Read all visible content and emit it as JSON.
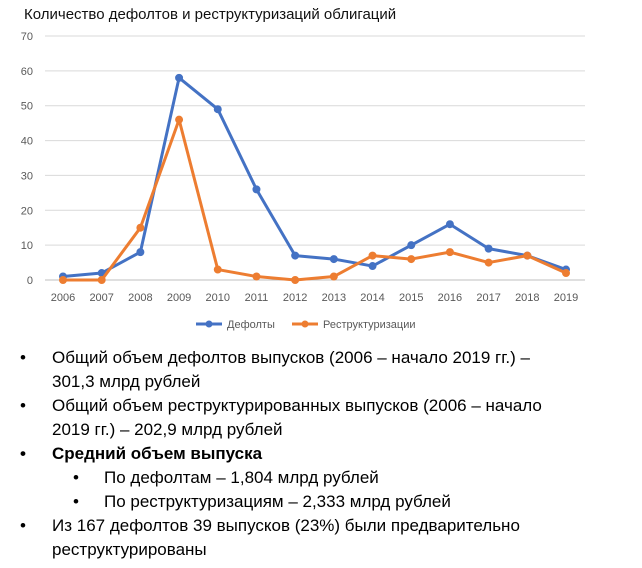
{
  "chart_data": {
    "type": "line",
    "title": "Количество дефолтов и реструктуризаций облигаций",
    "xlabel": "",
    "ylabel": "",
    "categories": [
      "2006",
      "2007",
      "2008",
      "2009",
      "2010",
      "2011",
      "2012",
      "2013",
      "2014",
      "2015",
      "2016",
      "2017",
      "2018",
      "2019"
    ],
    "ylim": [
      0,
      70
    ],
    "yticks": [
      "0",
      "10",
      "20",
      "30",
      "40",
      "50",
      "60",
      "70"
    ],
    "grid": true,
    "legend_position": "bottom",
    "series": [
      {
        "name": "Дефолты",
        "color": "#4472C4",
        "values": [
          1,
          2,
          8,
          58,
          49,
          26,
          7,
          6,
          4,
          10,
          16,
          9,
          7,
          3
        ]
      },
      {
        "name": "Реструктуризации",
        "color": "#ED7D31",
        "values": [
          0,
          0,
          15,
          46,
          3,
          1,
          0,
          1,
          7,
          6,
          8,
          5,
          7,
          2
        ]
      }
    ]
  },
  "bullets": [
    {
      "level": 1,
      "bold": false,
      "marker": "•",
      "lines": [
        "Общий объем дефолтов выпусков (2006 – начало 2019 гг.) –",
        "301,3 млрд рублей"
      ]
    },
    {
      "level": 1,
      "bold": false,
      "marker": "•",
      "lines": [
        "Общий объем реструктурированных выпусков (2006 – начало",
        "2019 гг.) – 202,9 млрд рублей"
      ]
    },
    {
      "level": 1,
      "bold": true,
      "marker": "•",
      "lines": [
        "Средний объем выпуска"
      ]
    },
    {
      "level": 2,
      "bold": false,
      "marker": "•",
      "lines": [
        "По дефолтам  –  1,804 млрд рублей"
      ]
    },
    {
      "level": 2,
      "bold": false,
      "marker": "•",
      "lines": [
        "По реструктуризациям – 2,333 млрд рублей"
      ]
    },
    {
      "level": 1,
      "bold": false,
      "marker": "•",
      "lines": [
        "Из 167 дефолтов 39 выпусков (23%) были предварительно",
        "реструктурированы"
      ]
    }
  ]
}
